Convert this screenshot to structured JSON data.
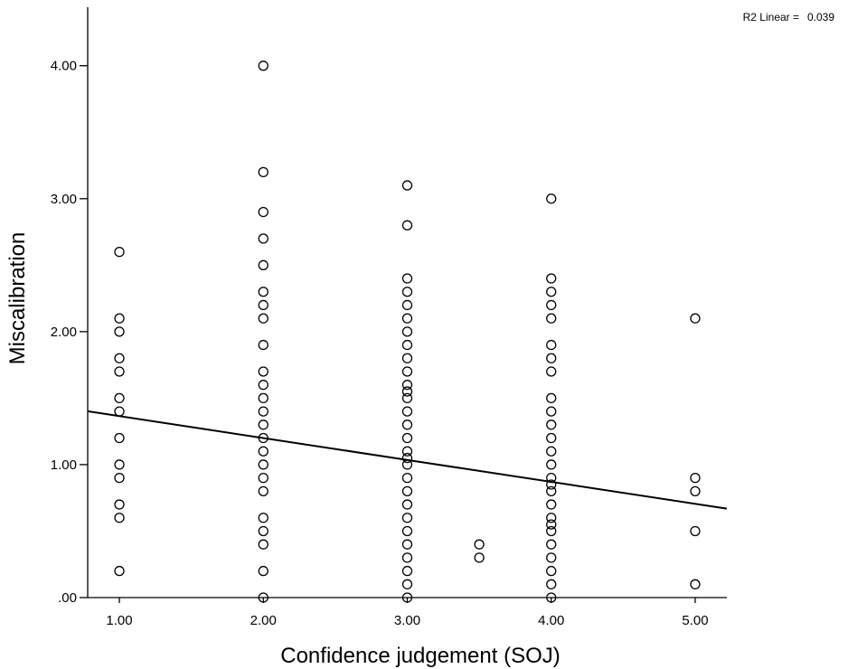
{
  "chart_data": {
    "type": "scatter",
    "xlabel": "Confidence judgement (SOJ)",
    "ylabel": "Miscalibration",
    "xlim": [
      0.78,
      5.22
    ],
    "ylim": [
      0,
      4.44
    ],
    "xticks": [
      "1.00",
      "2.00",
      "3.00",
      "4.00",
      "5.00"
    ],
    "yticks": [
      ".00",
      "1.00",
      "2.00",
      "3.00",
      "4.00"
    ],
    "annotation": {
      "label": "R2 Linear =",
      "value": "0.039"
    },
    "grid": false,
    "legend": "none",
    "fit_line": {
      "type": "linear",
      "intercept": 1.53,
      "slope": -0.165
    },
    "points": [
      {
        "x": 1,
        "y": 2.6
      },
      {
        "x": 1,
        "y": 2.1
      },
      {
        "x": 1,
        "y": 2.0
      },
      {
        "x": 1,
        "y": 1.8
      },
      {
        "x": 1,
        "y": 1.7
      },
      {
        "x": 1,
        "y": 1.5
      },
      {
        "x": 1,
        "y": 1.4
      },
      {
        "x": 1,
        "y": 1.2
      },
      {
        "x": 1,
        "y": 1.0
      },
      {
        "x": 1,
        "y": 0.9
      },
      {
        "x": 1,
        "y": 0.7
      },
      {
        "x": 1,
        "y": 0.6
      },
      {
        "x": 1,
        "y": 0.2
      },
      {
        "x": 2,
        "y": 4.0
      },
      {
        "x": 2,
        "y": 3.2
      },
      {
        "x": 2,
        "y": 2.9
      },
      {
        "x": 2,
        "y": 2.7
      },
      {
        "x": 2,
        "y": 2.5
      },
      {
        "x": 2,
        "y": 2.3
      },
      {
        "x": 2,
        "y": 2.2
      },
      {
        "x": 2,
        "y": 2.1
      },
      {
        "x": 2,
        "y": 1.9
      },
      {
        "x": 2,
        "y": 1.7
      },
      {
        "x": 2,
        "y": 1.6
      },
      {
        "x": 2,
        "y": 1.5
      },
      {
        "x": 2,
        "y": 1.4
      },
      {
        "x": 2,
        "y": 1.3
      },
      {
        "x": 2,
        "y": 1.2
      },
      {
        "x": 2,
        "y": 1.1
      },
      {
        "x": 2,
        "y": 1.0
      },
      {
        "x": 2,
        "y": 0.9
      },
      {
        "x": 2,
        "y": 0.8
      },
      {
        "x": 2,
        "y": 0.6
      },
      {
        "x": 2,
        "y": 0.5
      },
      {
        "x": 2,
        "y": 0.4
      },
      {
        "x": 2,
        "y": 0.2
      },
      {
        "x": 2,
        "y": 0.0
      },
      {
        "x": 3,
        "y": 3.1
      },
      {
        "x": 3,
        "y": 2.8
      },
      {
        "x": 3,
        "y": 2.4
      },
      {
        "x": 3,
        "y": 2.3
      },
      {
        "x": 3,
        "y": 2.2
      },
      {
        "x": 3,
        "y": 2.1
      },
      {
        "x": 3,
        "y": 2.0
      },
      {
        "x": 3,
        "y": 1.9
      },
      {
        "x": 3,
        "y": 1.8
      },
      {
        "x": 3,
        "y": 1.7
      },
      {
        "x": 3,
        "y": 1.6
      },
      {
        "x": 3,
        "y": 1.55
      },
      {
        "x": 3,
        "y": 1.5
      },
      {
        "x": 3,
        "y": 1.4
      },
      {
        "x": 3,
        "y": 1.3
      },
      {
        "x": 3,
        "y": 1.2
      },
      {
        "x": 3,
        "y": 1.1
      },
      {
        "x": 3,
        "y": 1.05
      },
      {
        "x": 3,
        "y": 1.0
      },
      {
        "x": 3,
        "y": 0.9
      },
      {
        "x": 3,
        "y": 0.8
      },
      {
        "x": 3,
        "y": 0.7
      },
      {
        "x": 3,
        "y": 0.6
      },
      {
        "x": 3,
        "y": 0.5
      },
      {
        "x": 3,
        "y": 0.4
      },
      {
        "x": 3,
        "y": 0.3
      },
      {
        "x": 3,
        "y": 0.2
      },
      {
        "x": 3,
        "y": 0.1
      },
      {
        "x": 3,
        "y": 0.0
      },
      {
        "x": 3.5,
        "y": 0.4
      },
      {
        "x": 3.5,
        "y": 0.3
      },
      {
        "x": 4,
        "y": 3.0
      },
      {
        "x": 4,
        "y": 2.4
      },
      {
        "x": 4,
        "y": 2.3
      },
      {
        "x": 4,
        "y": 2.2
      },
      {
        "x": 4,
        "y": 2.1
      },
      {
        "x": 4,
        "y": 1.9
      },
      {
        "x": 4,
        "y": 1.8
      },
      {
        "x": 4,
        "y": 1.7
      },
      {
        "x": 4,
        "y": 1.5
      },
      {
        "x": 4,
        "y": 1.4
      },
      {
        "x": 4,
        "y": 1.3
      },
      {
        "x": 4,
        "y": 1.2
      },
      {
        "x": 4,
        "y": 1.1
      },
      {
        "x": 4,
        "y": 1.0
      },
      {
        "x": 4,
        "y": 0.9
      },
      {
        "x": 4,
        "y": 0.85
      },
      {
        "x": 4,
        "y": 0.8
      },
      {
        "x": 4,
        "y": 0.7
      },
      {
        "x": 4,
        "y": 0.6
      },
      {
        "x": 4,
        "y": 0.55
      },
      {
        "x": 4,
        "y": 0.5
      },
      {
        "x": 4,
        "y": 0.4
      },
      {
        "x": 4,
        "y": 0.3
      },
      {
        "x": 4,
        "y": 0.2
      },
      {
        "x": 4,
        "y": 0.1
      },
      {
        "x": 4,
        "y": 0.0
      },
      {
        "x": 5,
        "y": 2.1
      },
      {
        "x": 5,
        "y": 0.9
      },
      {
        "x": 5,
        "y": 0.8
      },
      {
        "x": 5,
        "y": 0.5
      },
      {
        "x": 5,
        "y": 0.1
      }
    ]
  }
}
